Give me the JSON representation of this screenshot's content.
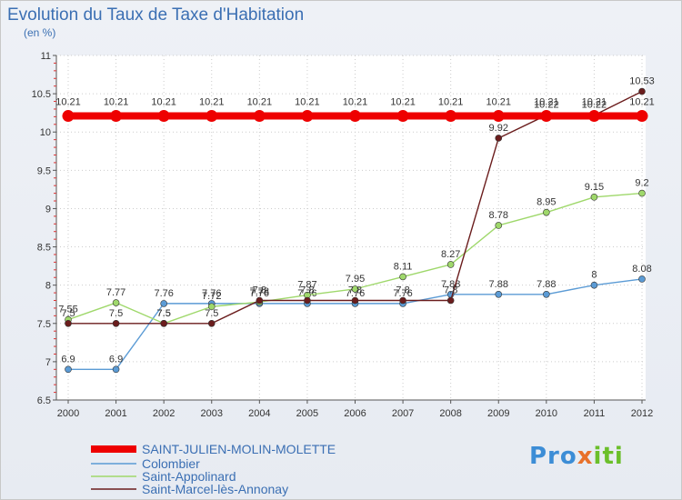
{
  "chart_data": {
    "type": "line",
    "title": "Evolution du Taux de Taxe d'Habitation",
    "ylabel": "(en %)",
    "xlabel": "",
    "ylim": [
      6.5,
      11
    ],
    "yticks": [
      "6.5",
      "7",
      "7.5",
      "8",
      "8.5",
      "9",
      "9.5",
      "10",
      "10.5",
      "11"
    ],
    "categories": [
      "2000",
      "2001",
      "2002",
      "2003",
      "2004",
      "2005",
      "2006",
      "2007",
      "2008",
      "2009",
      "2010",
      "2011",
      "2012"
    ],
    "series": [
      {
        "name": "SAINT-JULIEN-MOLIN-MOLETTE",
        "color": "#ee0000",
        "values": [
          10.21,
          10.21,
          10.21,
          10.21,
          10.21,
          10.21,
          10.21,
          10.21,
          10.21,
          10.21,
          10.21,
          10.21,
          10.21
        ],
        "labels": [
          "10.21",
          "10.21",
          "10.21",
          "10.21",
          "10.21",
          "10.21",
          "10.21",
          "10.21",
          "10.21",
          "10.21",
          "10.21",
          "10.21",
          "10.21"
        ]
      },
      {
        "name": "Colombier",
        "color": "#5b9bd5",
        "values": [
          6.9,
          6.9,
          7.76,
          7.76,
          7.76,
          7.76,
          7.76,
          7.76,
          7.88,
          7.88,
          7.88,
          8.0,
          8.08
        ],
        "labels": [
          "6.9",
          "6.9",
          "7.76",
          "7.76",
          "7.76",
          "7.76",
          "7.76",
          "7.76",
          "7.88",
          "7.88",
          "7.88",
          "8",
          "8.08"
        ]
      },
      {
        "name": "Saint-Appolinard",
        "color": "#9fd86b",
        "values": [
          7.55,
          7.77,
          7.5,
          7.72,
          7.78,
          7.87,
          7.95,
          8.11,
          8.27,
          8.78,
          8.95,
          9.15,
          9.2
        ],
        "labels": [
          "7.55",
          "7.77",
          "7.5",
          "7.72",
          "7.78",
          "7.87",
          "7.95",
          "8.11",
          "8.27",
          "8.78",
          "8.95",
          "9.15",
          "9.2"
        ]
      },
      {
        "name": "Saint-Marcel-lès-Annonay",
        "color": "#6b1d1d",
        "values": [
          7.5,
          7.5,
          7.5,
          7.5,
          7.8,
          7.8,
          7.8,
          7.8,
          7.8,
          9.92,
          10.22,
          10.22,
          10.53
        ],
        "labels": [
          "7.5",
          "7.5",
          "7.5",
          "7.5",
          "7.8",
          "7.8",
          "7.8",
          "7.8",
          "7.8",
          "9.92",
          "10.22",
          "10.22",
          "10.53"
        ]
      }
    ]
  },
  "logo": {
    "p1": "Pro",
    "p2": "x",
    "p3": "iti"
  }
}
